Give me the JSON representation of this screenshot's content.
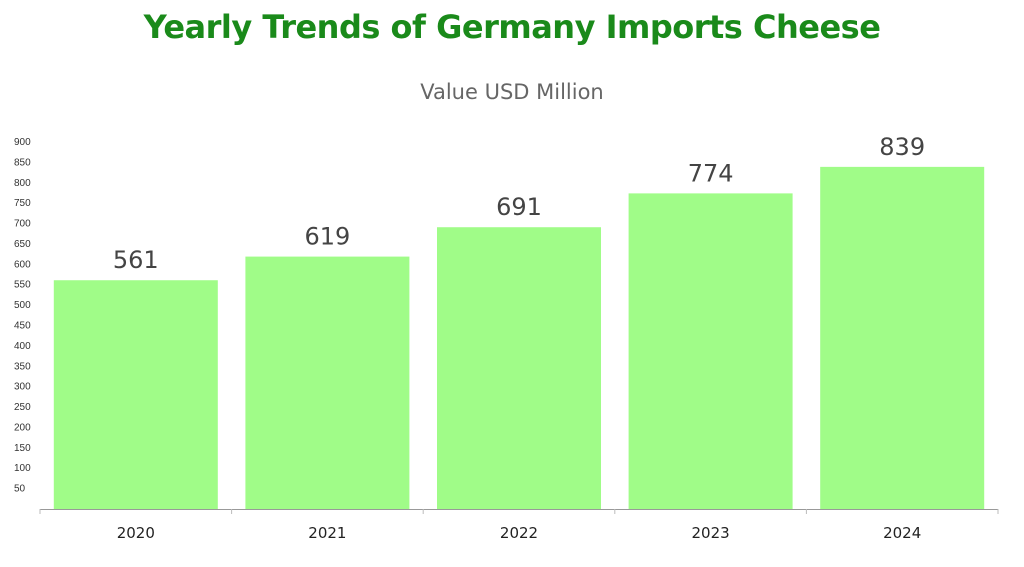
{
  "chart_data": {
    "type": "bar",
    "title": "Yearly Trends of Germany Imports Cheese",
    "subtitle": "Value USD Million",
    "categories": [
      "2020",
      "2021",
      "2022",
      "2023",
      "2024"
    ],
    "values": [
      561,
      619,
      691,
      774,
      839
    ],
    "ylim": [
      0,
      900
    ],
    "y_ticks": [
      50,
      100,
      150,
      200,
      250,
      300,
      350,
      400,
      450,
      500,
      550,
      600,
      650,
      700,
      750,
      800,
      850,
      900
    ],
    "grid": false,
    "bar_color": "#a0fc88",
    "title_color": "#1a8a1a"
  }
}
